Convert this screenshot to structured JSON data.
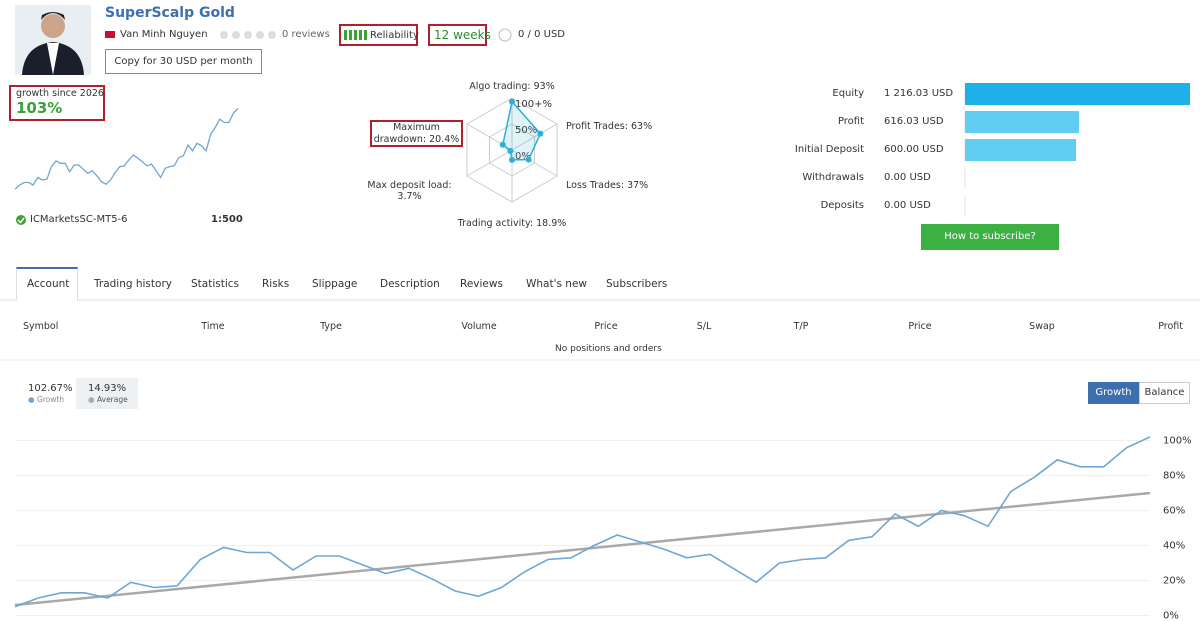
{
  "header": {
    "title": "SuperScalp Gold",
    "author": "Van Minh Nguyen",
    "reviews": "0 reviews",
    "reliability": "Reliability",
    "weeks": "12 weeks",
    "subscribers": "0 / 0 USD",
    "copy_button": "Copy for 30 USD per month"
  },
  "growth_summary": {
    "label": "growth since 2026",
    "value": "103%",
    "server": "ICMarketsSC-MT5-6",
    "leverage": "1:500"
  },
  "radar": {
    "type": "radar",
    "color": "#2bb0d8",
    "lim": [
      0,
      100
    ],
    "ticks": [
      {
        "value": 100,
        "label": "100+%"
      },
      {
        "value": 50,
        "label": "50%"
      },
      {
        "value": 0,
        "label": "0%"
      }
    ],
    "axes": [
      {
        "name": "Algo trading:",
        "value": 93,
        "value_label": "93%"
      },
      {
        "name": "Profit Trades:",
        "value": 63,
        "value_label": "63%"
      },
      {
        "name": "Loss Trades:",
        "value": 37,
        "value_label": "37%"
      },
      {
        "name": "Trading activity:",
        "value": 18.9,
        "value_label": "18.9%"
      },
      {
        "name": "Max deposit load:",
        "value": 3.7,
        "value_label": "3.7%"
      },
      {
        "name": "Maximum drawdown:",
        "value": 20.4,
        "value_label": "20.4%"
      }
    ]
  },
  "account": {
    "type": "bar",
    "categories": [
      "Equity",
      "Profit",
      "Initial Deposit",
      "Withdrawals",
      "Deposits"
    ],
    "values": [
      1216.03,
      616.03,
      600,
      0,
      0
    ],
    "value_labels": [
      "1 216.03 USD",
      "616.03 USD",
      "600.00 USD",
      "0.00 USD",
      "0.00 USD"
    ],
    "colors": [
      "#1eb0e8",
      "#62cdf2",
      "#62cdf2",
      "#62cdf2",
      "#62cdf2"
    ],
    "subscribe_button": "How to subscribe?"
  },
  "tabs": [
    "Account",
    "Trading history",
    "Statistics",
    "Risks",
    "Slippage",
    "Description",
    "Reviews",
    "What's new",
    "Subscribers"
  ],
  "table": {
    "columns": [
      "Symbol",
      "Time",
      "Type",
      "Volume",
      "Price",
      "S/L",
      "T/P",
      "Price",
      "Swap",
      "Profit"
    ],
    "empty_message": "No positions and orders"
  },
  "chart_data": {
    "type": "line",
    "ylim": [
      -2,
      106
    ],
    "yticks": [
      {
        "value": 0,
        "label": "0%"
      },
      {
        "value": 20,
        "label": "20%"
      },
      {
        "value": 40,
        "label": "40%"
      },
      {
        "value": 60,
        "label": "60%"
      },
      {
        "value": 80,
        "label": "80%"
      },
      {
        "value": 100,
        "label": "100%"
      }
    ],
    "grid": true,
    "legend_values": [
      "102.67%",
      "14.93%"
    ],
    "buttons": [
      "Growth",
      "Balance"
    ],
    "series": [
      {
        "name": "Growth",
        "color": "#6ea6d8",
        "values": [
          5,
          10,
          13,
          13,
          10,
          19,
          16,
          17,
          32,
          39,
          36,
          36,
          26,
          34,
          34,
          29,
          24,
          27,
          21,
          14,
          11,
          16,
          25,
          32,
          33,
          40,
          46,
          42,
          38,
          33,
          35,
          27,
          19,
          30,
          32,
          33,
          43,
          45,
          58,
          51,
          60,
          57,
          51,
          71,
          79,
          89,
          85,
          85,
          96,
          102
        ]
      },
      {
        "name": "Average",
        "color": "#a9a9a9",
        "values": [
          6,
          70
        ]
      }
    ]
  }
}
